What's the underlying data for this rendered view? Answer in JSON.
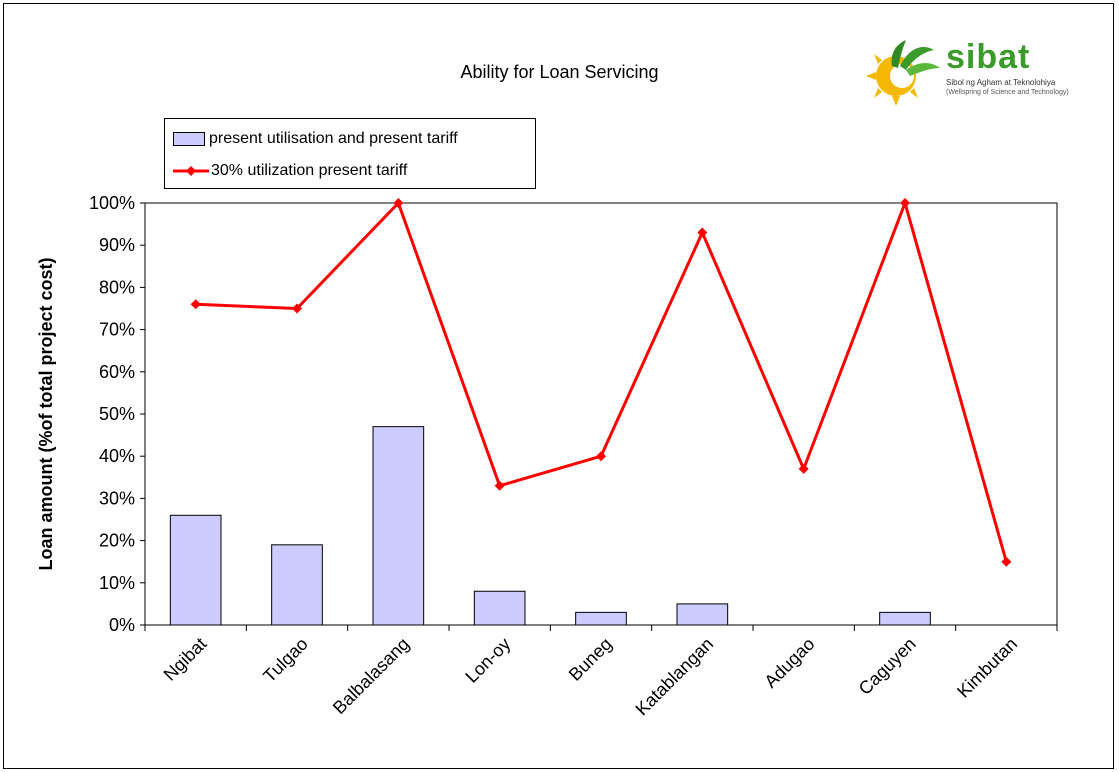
{
  "chart_data": {
    "type": "bar+line",
    "title": "Ability for Loan Servicing",
    "ylabel": "Loan amount (%of total project cost)",
    "xlabel": "",
    "ylim": [
      0,
      100
    ],
    "yticks": [
      "0%",
      "10%",
      "20%",
      "30%",
      "40%",
      "50%",
      "60%",
      "70%",
      "80%",
      "90%",
      "100%"
    ],
    "categories": [
      "Ngibat",
      "Tulgao",
      "Balbalasang",
      "Lon-oy",
      "Buneg",
      "Katablangan",
      "Adugao",
      "Caguyen",
      "Kimbutan"
    ],
    "series": [
      {
        "name": "present utilisation and present tariff",
        "kind": "bar",
        "color": "#ccccff",
        "values": [
          26,
          19,
          47,
          8,
          3,
          5,
          0,
          3,
          0
        ]
      },
      {
        "name": "30% utilization present tariff",
        "kind": "line",
        "color": "#ff0000",
        "values": [
          76,
          75,
          100,
          33,
          40,
          93,
          37,
          100,
          15
        ]
      }
    ],
    "legend_position": "top-left",
    "grid": false
  },
  "logo": {
    "wordmark": "sibat",
    "tagline": "Sibol ng Agham at Teknolohiya",
    "subtitle": "(Wellspring of Science and Technology)"
  }
}
